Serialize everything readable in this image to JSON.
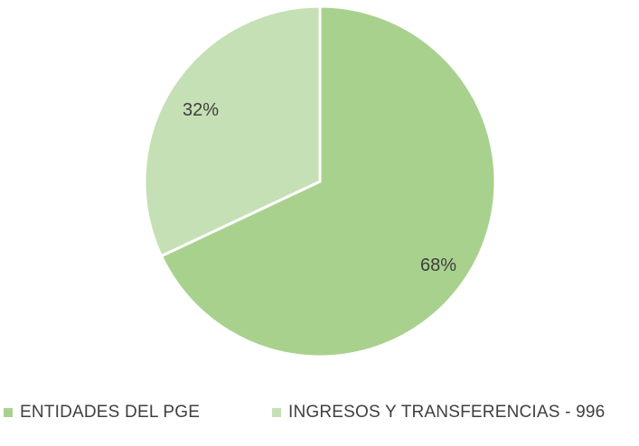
{
  "chart_data": {
    "type": "pie",
    "slices": [
      {
        "label": "ENTIDADES DEL PGE",
        "value": 68,
        "value_label": "68%",
        "color": "#a9d18e"
      },
      {
        "label": "INGRESOS Y TRANSFERENCIAS - 996",
        "value": 32,
        "value_label": "32%",
        "color": "#c5e0b4"
      }
    ],
    "start_angle_deg": 0,
    "direction": "clockwise",
    "legend_position": "bottom",
    "slice_border_color": "#ffffff"
  }
}
